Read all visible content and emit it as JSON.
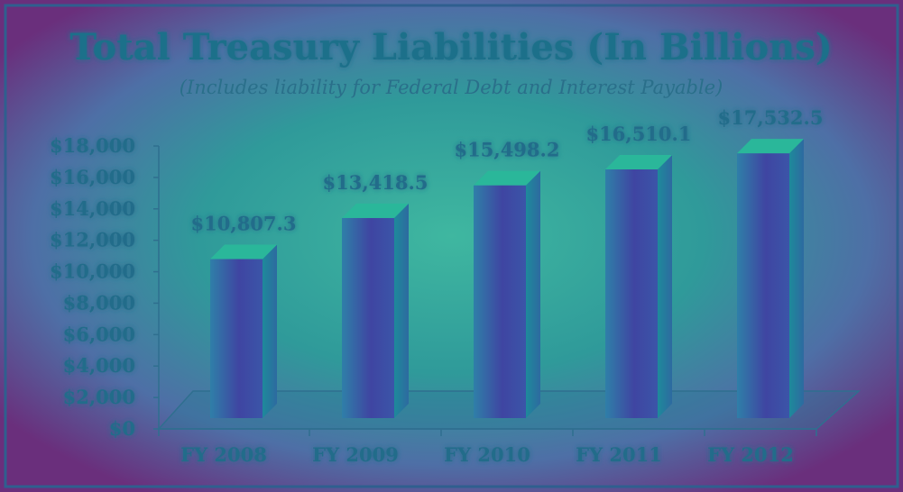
{
  "chart_data": {
    "type": "bar",
    "title": "Total Treasury Liabilities (In Billions)",
    "subtitle": "(Includes liability for Federal Debt and Interest Payable)",
    "categories": [
      "FY 2008",
      "FY 2009",
      "FY 2010",
      "FY 2011",
      "FY 2012"
    ],
    "values": [
      10807.3,
      13418.5,
      15498.2,
      16510.1,
      17532.5
    ],
    "data_labels": [
      "$10,807.3",
      "$13,418.5",
      "$15,498.2",
      "$16,510.1",
      "$17,532.5"
    ],
    "ylim": [
      0,
      18000
    ],
    "yticks": [
      0,
      2000,
      4000,
      6000,
      8000,
      10000,
      12000,
      14000,
      16000,
      18000
    ],
    "ytick_labels": [
      "$0",
      "$2,000",
      "$4,000",
      "$6,000",
      "$8,000",
      "$10,000",
      "$12,000",
      "$14,000",
      "$16,000",
      "$18,000"
    ],
    "grid": false,
    "legend": "none"
  },
  "colors": {
    "background": "#6a2f7c",
    "frame": "#2f5f8f",
    "bar_front": "#3b4fa0",
    "bar_side": "#1f8b98",
    "bar_top": "#2ab79a",
    "text": "#1f6f8a",
    "glow": "#59e0b4"
  }
}
